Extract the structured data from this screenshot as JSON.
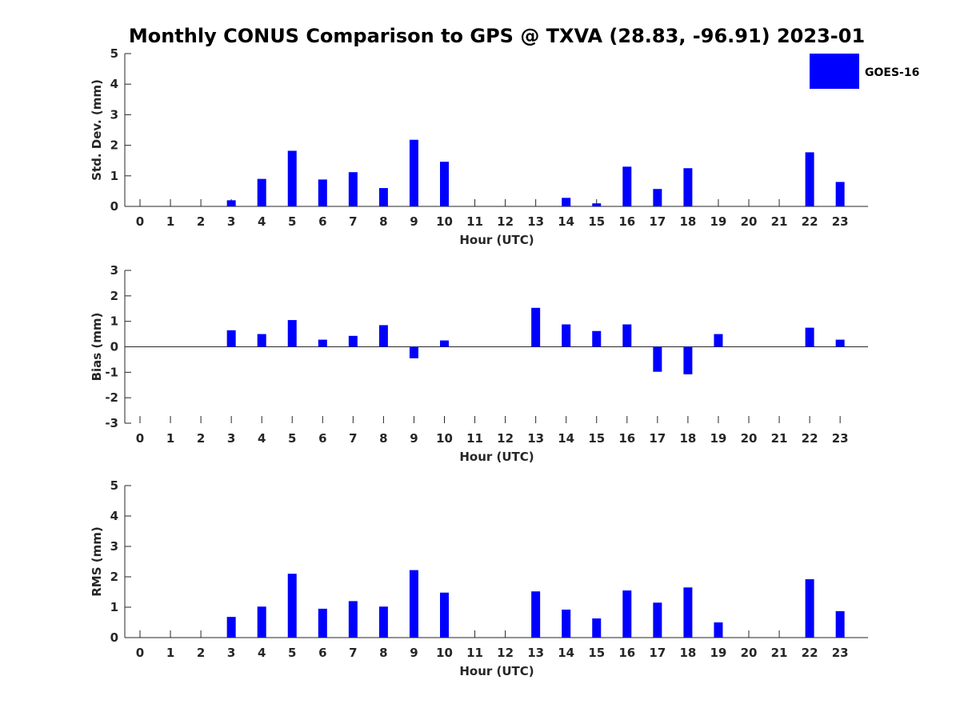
{
  "title": "Monthly CONUS Comparison to GPS @ TXVA (28.83, -96.91) 2023-01",
  "legend": {
    "label": "GOES-16",
    "color": "#0000ff",
    "placement": "top-right"
  },
  "chart_data": [
    {
      "type": "bar",
      "name": "std-dev",
      "xlabel": "Hour (UTC)",
      "ylabel": "Std. Dev. (mm)",
      "ylim": [
        0,
        5
      ],
      "yticks": [
        "0",
        "1",
        "2",
        "3",
        "4",
        "5"
      ],
      "categories": [
        "0",
        "1",
        "2",
        "3",
        "4",
        "5",
        "6",
        "7",
        "8",
        "9",
        "10",
        "11",
        "12",
        "13",
        "14",
        "15",
        "16",
        "17",
        "18",
        "19",
        "20",
        "21",
        "22",
        "23"
      ],
      "series": [
        {
          "name": "GOES-16",
          "values": [
            null,
            null,
            null,
            0.2,
            0.9,
            1.82,
            0.88,
            1.12,
            0.6,
            2.18,
            1.46,
            null,
            null,
            null,
            0.28,
            0.1,
            1.3,
            0.57,
            1.25,
            null,
            null,
            null,
            1.77,
            0.8
          ]
        }
      ]
    },
    {
      "type": "bar",
      "name": "bias",
      "xlabel": "Hour (UTC)",
      "ylabel": "Bias (mm)",
      "ylim": [
        -3,
        3
      ],
      "yticks": [
        "-3",
        "-2",
        "-1",
        "0",
        "1",
        "2",
        "3"
      ],
      "categories": [
        "0",
        "1",
        "2",
        "3",
        "4",
        "5",
        "6",
        "7",
        "8",
        "9",
        "10",
        "11",
        "12",
        "13",
        "14",
        "15",
        "16",
        "17",
        "18",
        "19",
        "20",
        "21",
        "22",
        "23"
      ],
      "series": [
        {
          "name": "GOES-16",
          "values": [
            null,
            null,
            null,
            0.65,
            0.5,
            1.05,
            0.28,
            0.43,
            0.85,
            -0.45,
            0.25,
            null,
            null,
            1.53,
            0.88,
            0.62,
            0.88,
            -0.98,
            -1.08,
            0.5,
            null,
            null,
            0.75,
            0.28
          ]
        }
      ]
    },
    {
      "type": "bar",
      "name": "rms",
      "xlabel": "Hour (UTC)",
      "ylabel": "RMS (mm)",
      "ylim": [
        0,
        5
      ],
      "yticks": [
        "0",
        "1",
        "2",
        "3",
        "4",
        "5"
      ],
      "categories": [
        "0",
        "1",
        "2",
        "3",
        "4",
        "5",
        "6",
        "7",
        "8",
        "9",
        "10",
        "11",
        "12",
        "13",
        "14",
        "15",
        "16",
        "17",
        "18",
        "19",
        "20",
        "21",
        "22",
        "23"
      ],
      "series": [
        {
          "name": "GOES-16",
          "values": [
            null,
            null,
            null,
            0.68,
            1.02,
            2.1,
            0.95,
            1.2,
            1.02,
            2.22,
            1.48,
            null,
            null,
            1.52,
            0.92,
            0.63,
            1.55,
            1.15,
            1.65,
            0.5,
            null,
            null,
            1.92,
            0.87
          ]
        }
      ]
    }
  ]
}
